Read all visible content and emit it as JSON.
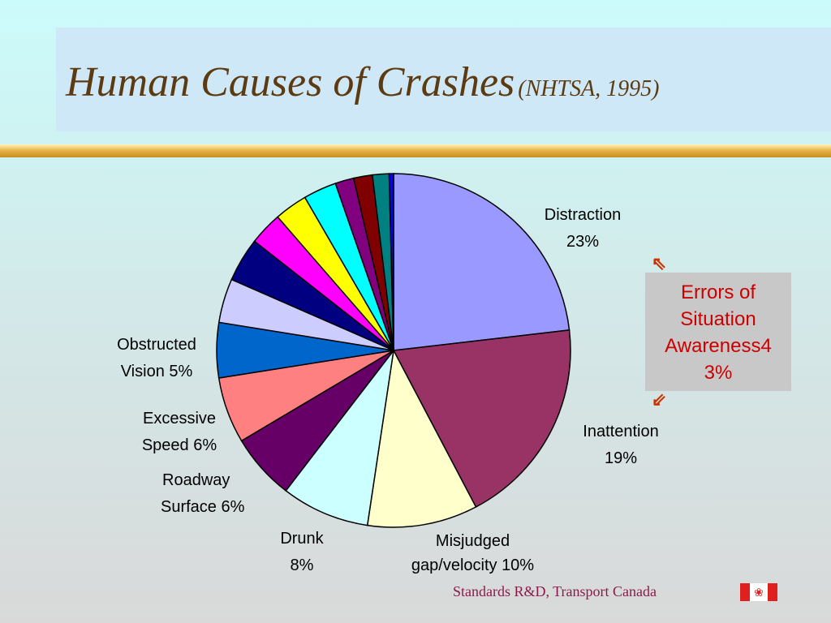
{
  "title": {
    "main": "Human Causes of Crashes",
    "sub": "(NHTSA, 1995)"
  },
  "chart_data": {
    "type": "pie",
    "slices": [
      {
        "label": "Distraction",
        "value": 23,
        "color": "#9999ff"
      },
      {
        "label": "Inattention",
        "value": 19,
        "color": "#993366"
      },
      {
        "label": "Misjudged gap/velocity",
        "value": 10,
        "color": "#ffffcc"
      },
      {
        "label": "Drunk",
        "value": 8,
        "color": "#ccffff"
      },
      {
        "label": "Roadway Surface",
        "value": 6,
        "color": "#660066"
      },
      {
        "label": "Excessive Speed",
        "value": 6,
        "color": "#ff8080"
      },
      {
        "label": "Obstructed Vision",
        "value": 5,
        "color": "#0066cc"
      },
      {
        "label": "",
        "value": 4,
        "color": "#ccccff"
      },
      {
        "label": "",
        "value": 4,
        "color": "#000080"
      },
      {
        "label": "",
        "value": 3,
        "color": "#ff00ff"
      },
      {
        "label": "",
        "value": 3,
        "color": "#ffff00"
      },
      {
        "label": "",
        "value": 3,
        "color": "#00ffff"
      },
      {
        "label": "",
        "value": 1.7,
        "color": "#800080"
      },
      {
        "label": "",
        "value": 1.7,
        "color": "#800000"
      },
      {
        "label": "",
        "value": 1.5,
        "color": "#008080"
      },
      {
        "label": "",
        "value": 0.4,
        "color": "#0000ff"
      }
    ]
  },
  "labels": {
    "distraction": {
      "line1": "Distraction",
      "line2": "23%"
    },
    "inattention": {
      "line1": "Inattention",
      "line2": "19%"
    },
    "misjudged": {
      "line1": "Misjudged",
      "line2": "gap/velocity  10%"
    },
    "drunk": {
      "line1": "Drunk",
      "line2": "8%"
    },
    "roadway": {
      "line1": "Roadway",
      "line2": "Surface  6%"
    },
    "speed": {
      "line1": "Excessive",
      "line2": "Speed  6%"
    },
    "obstructed": {
      "line1": "Obstructed",
      "line2": "Vision  5%"
    }
  },
  "callout": {
    "lines": [
      "Errors of",
      "Situation",
      "Awareness4",
      "3%"
    ]
  },
  "footer": "Standards R&D, Transport Canada",
  "icons": {
    "arrow_up": "arrow-up-left-icon",
    "arrow_down": "arrow-down-left-icon",
    "flag": "canada-flag-icon"
  }
}
